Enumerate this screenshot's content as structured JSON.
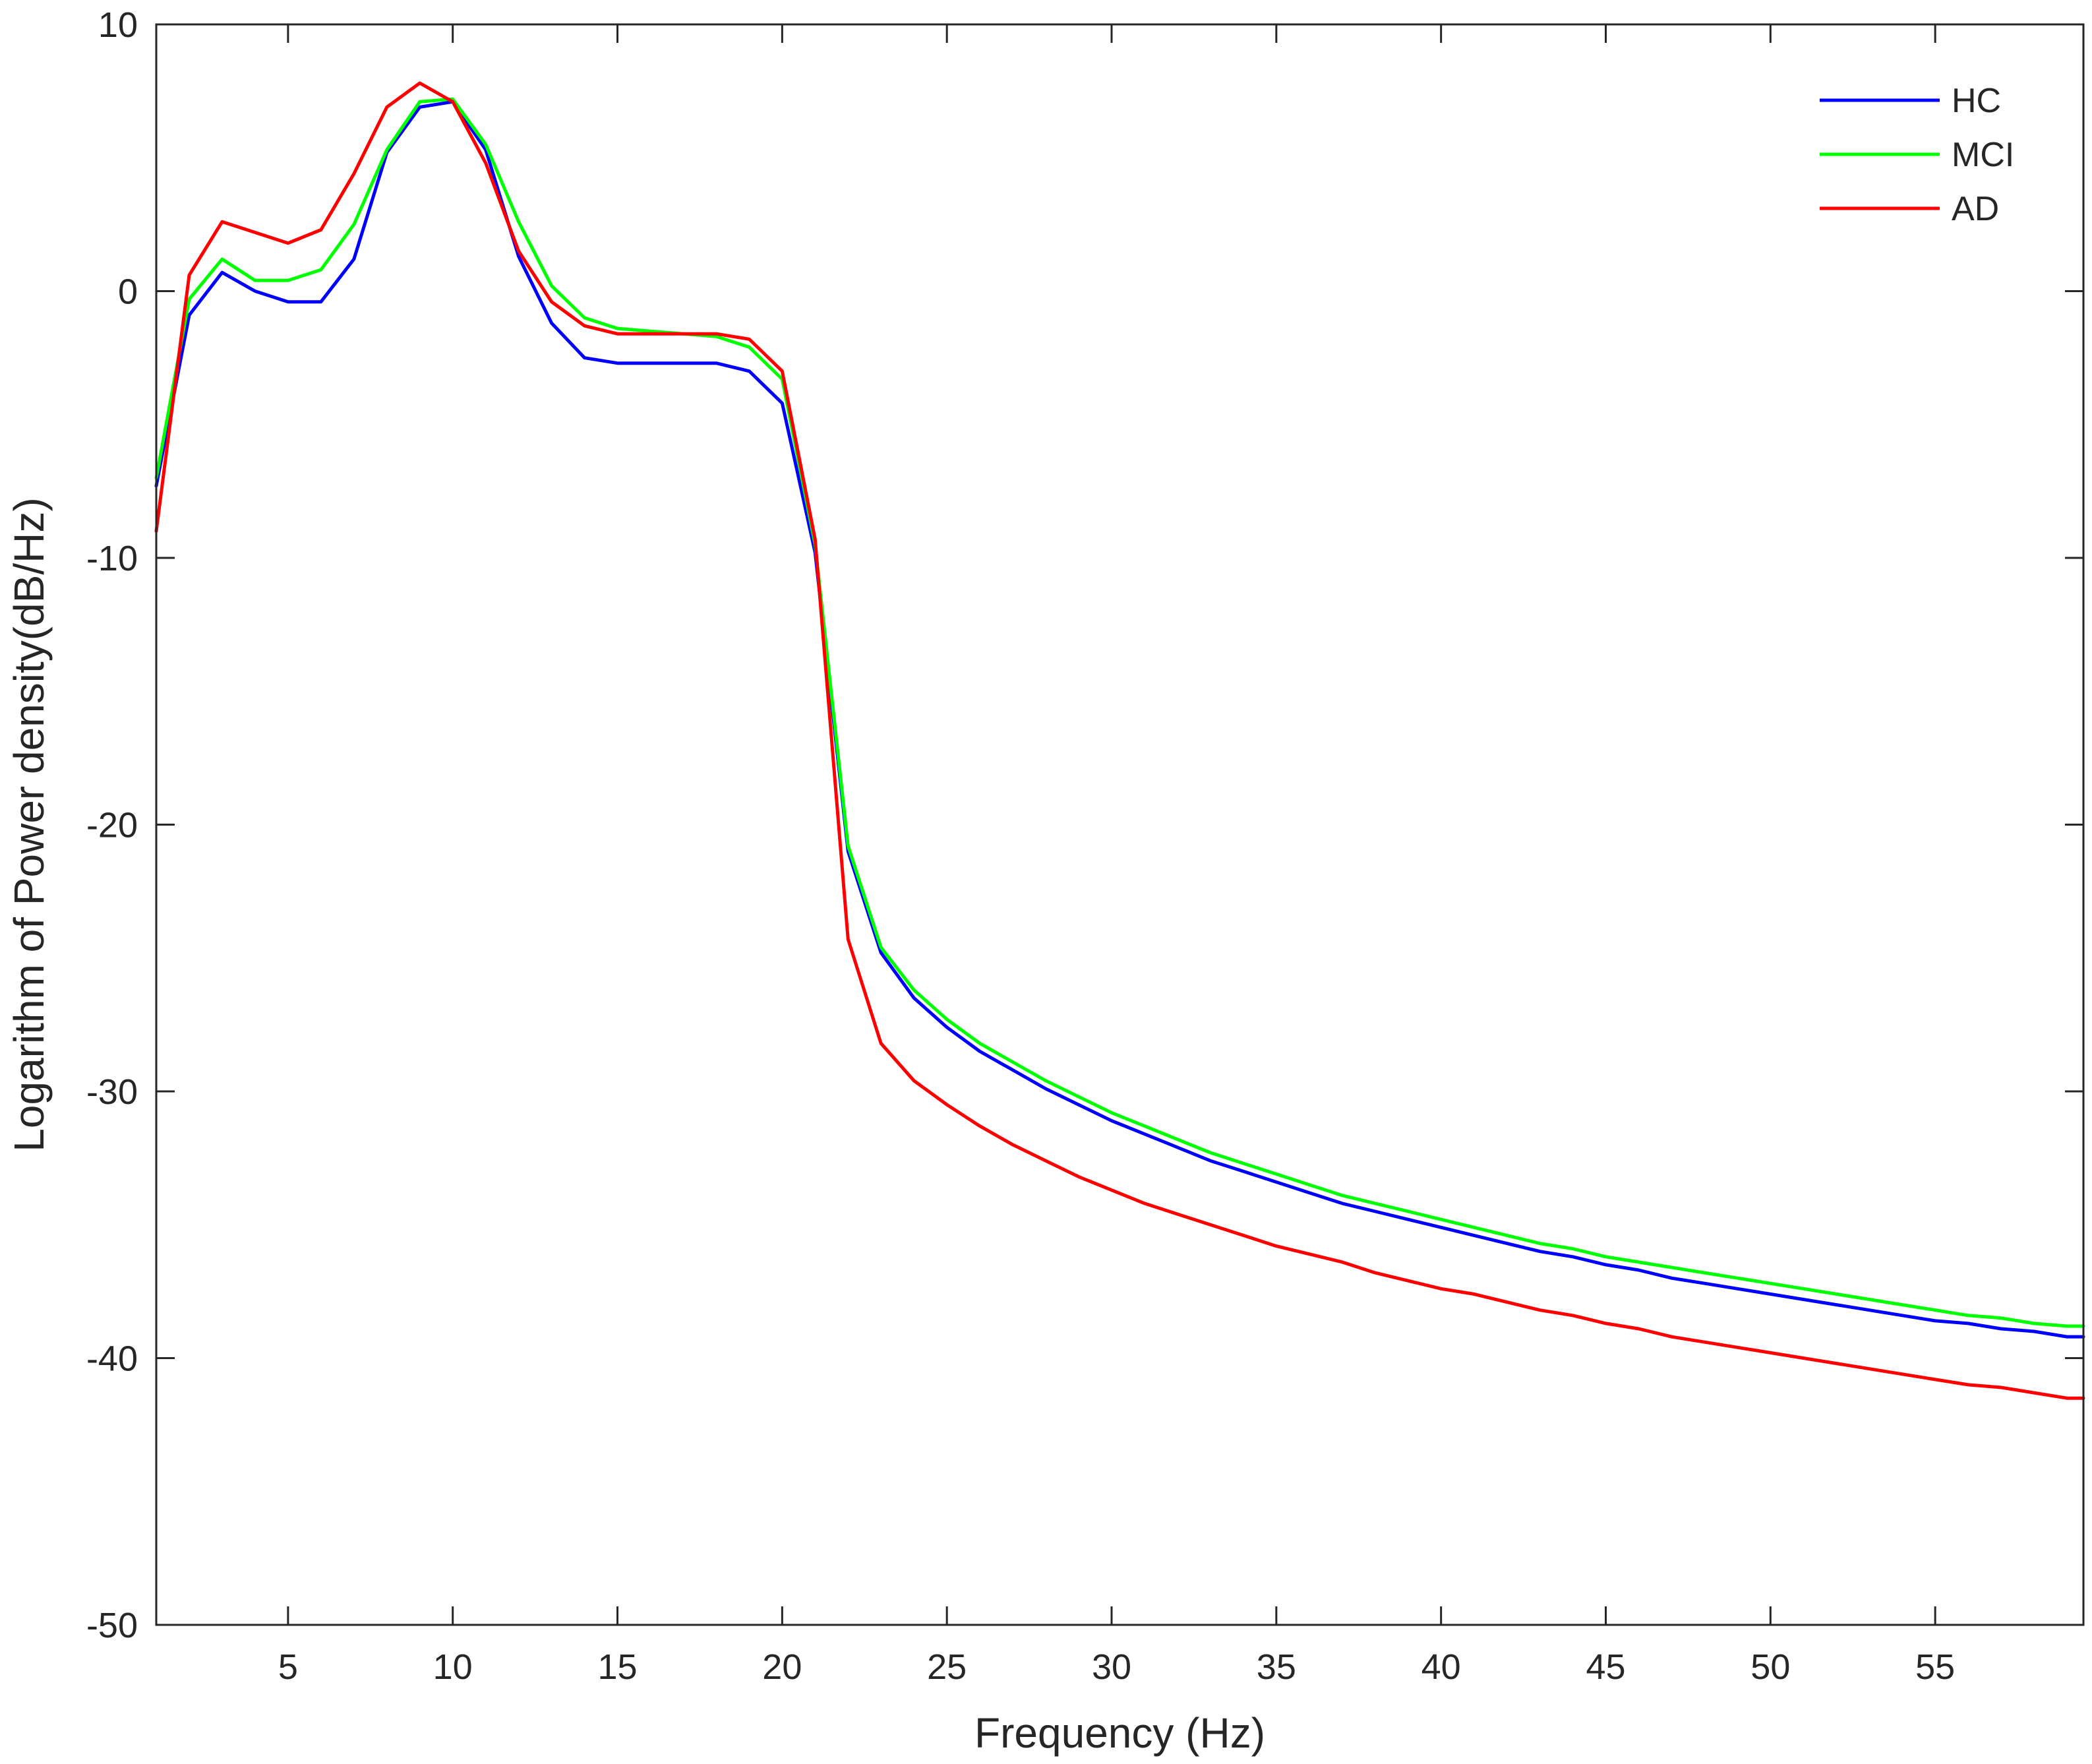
{
  "chart_data": {
    "type": "line",
    "title": "",
    "xlabel": "Frequency (Hz)",
    "ylabel": "Logarithm of Power density(dB/Hz)",
    "xlim": [
      1,
      59.5
    ],
    "ylim": [
      -50,
      10
    ],
    "xticks": [
      5,
      10,
      15,
      20,
      25,
      30,
      35,
      40,
      45,
      50,
      55
    ],
    "yticks": [
      -50,
      -40,
      -30,
      -20,
      -10,
      0,
      10
    ],
    "grid": false,
    "legend_position": "top-right",
    "x": [
      1,
      2,
      3,
      4,
      5,
      6,
      7,
      8,
      9,
      10,
      11,
      12,
      13,
      14,
      15,
      16,
      17,
      18,
      19,
      20,
      21,
      22,
      23,
      24,
      25,
      26,
      27,
      28,
      29,
      30,
      31,
      32,
      33,
      34,
      35,
      36,
      37,
      38,
      39,
      40,
      41,
      42,
      43,
      44,
      45,
      46,
      47,
      48,
      49,
      50,
      51,
      52,
      53,
      54,
      55,
      56,
      57,
      58,
      59,
      59.5
    ],
    "series": [
      {
        "name": "HC",
        "color": "#0000ff",
        "values": [
          -7.3,
          -0.9,
          0.7,
          0.0,
          -0.4,
          -0.4,
          1.2,
          5.2,
          6.9,
          7.1,
          5.3,
          1.3,
          -1.2,
          -2.5,
          -2.7,
          -2.7,
          -2.7,
          -2.7,
          -3.0,
          -4.2,
          -9.8,
          -21.0,
          -24.8,
          -26.5,
          -27.6,
          -28.5,
          -29.2,
          -29.9,
          -30.5,
          -31.1,
          -31.6,
          -32.1,
          -32.6,
          -33.0,
          -33.4,
          -33.8,
          -34.2,
          -34.5,
          -34.8,
          -35.1,
          -35.4,
          -35.7,
          -36.0,
          -36.2,
          -36.5,
          -36.7,
          -37.0,
          -37.2,
          -37.4,
          -37.6,
          -37.8,
          -38.0,
          -38.2,
          -38.4,
          -38.6,
          -38.7,
          -38.9,
          -39.0,
          -39.2,
          -39.2
        ]
      },
      {
        "name": "MCI",
        "color": "#00ff00",
        "values": [
          -7.0,
          -0.3,
          1.2,
          0.4,
          0.4,
          0.8,
          2.5,
          5.3,
          7.1,
          7.2,
          5.5,
          2.6,
          0.2,
          -1.0,
          -1.4,
          -1.5,
          -1.6,
          -1.7,
          -2.1,
          -3.3,
          -9.5,
          -20.8,
          -24.6,
          -26.2,
          -27.3,
          -28.2,
          -28.9,
          -29.6,
          -30.2,
          -30.8,
          -31.3,
          -31.8,
          -32.3,
          -32.7,
          -33.1,
          -33.5,
          -33.9,
          -34.2,
          -34.5,
          -34.8,
          -35.1,
          -35.4,
          -35.7,
          -35.9,
          -36.2,
          -36.4,
          -36.6,
          -36.8,
          -37.0,
          -37.2,
          -37.4,
          -37.6,
          -37.8,
          -38.0,
          -38.2,
          -38.4,
          -38.5,
          -38.7,
          -38.8,
          -38.8
        ]
      },
      {
        "name": "AD",
        "color": "#ff0000",
        "values": [
          -9.0,
          0.6,
          2.6,
          2.2,
          1.8,
          2.3,
          4.4,
          6.9,
          7.8,
          7.1,
          4.8,
          1.5,
          -0.4,
          -1.3,
          -1.6,
          -1.6,
          -1.6,
          -1.6,
          -1.8,
          -3.0,
          -9.3,
          -24.3,
          -28.2,
          -29.6,
          -30.5,
          -31.3,
          -32.0,
          -32.6,
          -33.2,
          -33.7,
          -34.2,
          -34.6,
          -35.0,
          -35.4,
          -35.8,
          -36.1,
          -36.4,
          -36.8,
          -37.1,
          -37.4,
          -37.6,
          -37.9,
          -38.2,
          -38.4,
          -38.7,
          -38.9,
          -39.2,
          -39.4,
          -39.6,
          -39.8,
          -40.0,
          -40.2,
          -40.4,
          -40.6,
          -40.8,
          -41.0,
          -41.1,
          -41.3,
          -41.5,
          -41.5
        ]
      }
    ]
  }
}
